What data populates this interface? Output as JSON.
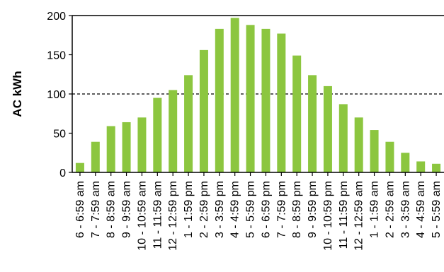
{
  "chart_data": {
    "type": "bar",
    "title": "",
    "xlabel": "",
    "ylabel": "AC kWh",
    "ylim": [
      0,
      200
    ],
    "yticks": [
      0,
      50,
      100,
      150,
      200
    ],
    "reference_line": 100,
    "grid": false,
    "bar_color": "#8cc63f",
    "categories": [
      "6 - 6:59 am",
      "7 - 7:59 am",
      "8 - 8:59 am",
      "9 - 9:59 am",
      "10 - 10:59 am",
      "11 - 11:59 am",
      "12 - 12:59 pm",
      "1 - 1:59 pm",
      "2 - 2:59 pm",
      "3 - 3:59 pm",
      "4 - 4:59 pm",
      "5 - 5:59 pm",
      "6 - 6:59 pm",
      "7 - 7:59 pm",
      "8 - 8:59 pm",
      "9 - 9:59 pm",
      "10 - 10:59 pm",
      "11 - 11:59 pm",
      "12 - 12:59 am",
      "1 - 1:59 am",
      "2 - 2:59 am",
      "3 - 3:59 am",
      "4 - 4:59 am",
      "5 - 5:59 am"
    ],
    "values": [
      12,
      39,
      59,
      64,
      70,
      95,
      105,
      124,
      156,
      183,
      197,
      188,
      183,
      177,
      149,
      124,
      110,
      87,
      70,
      54,
      39,
      25,
      14,
      11
    ]
  }
}
